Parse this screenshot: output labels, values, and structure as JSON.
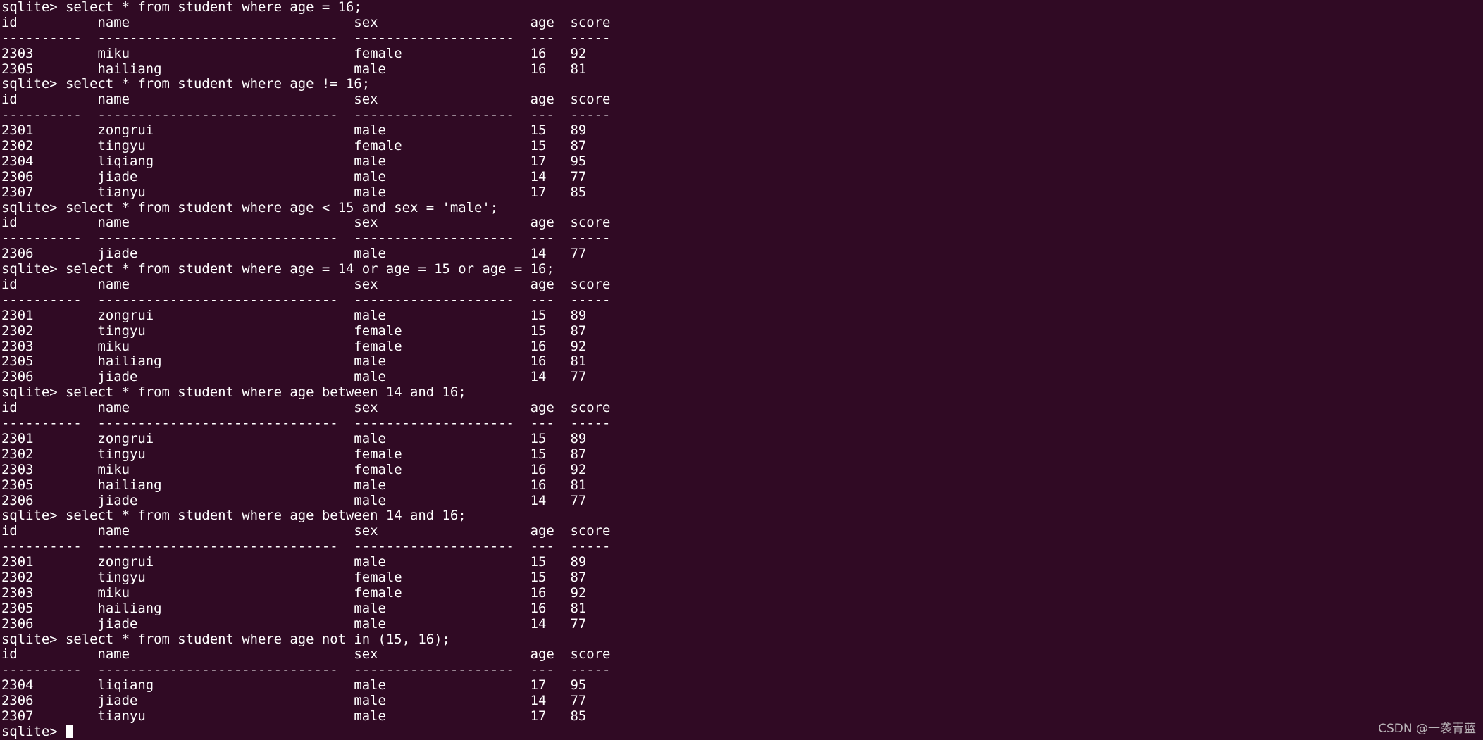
{
  "terminal": {
    "prompt": "sqlite> ",
    "columns": [
      "id",
      "name",
      "sex",
      "age",
      "score"
    ],
    "column_widths": [
      10,
      30,
      20,
      3,
      5
    ],
    "queries": [
      {
        "command": "select * from student where age = 16;",
        "rows": [
          [
            "2303",
            "miku",
            "female",
            "16",
            "92"
          ],
          [
            "2305",
            "hailiang",
            "male",
            "16",
            "81"
          ]
        ]
      },
      {
        "command": "select * from student where age != 16;",
        "rows": [
          [
            "2301",
            "zongrui",
            "male",
            "15",
            "89"
          ],
          [
            "2302",
            "tingyu",
            "female",
            "15",
            "87"
          ],
          [
            "2304",
            "liqiang",
            "male",
            "17",
            "95"
          ],
          [
            "2306",
            "jiade",
            "male",
            "14",
            "77"
          ],
          [
            "2307",
            "tianyu",
            "male",
            "17",
            "85"
          ]
        ]
      },
      {
        "command": "select * from student where age < 15 and sex = 'male';",
        "rows": [
          [
            "2306",
            "jiade",
            "male",
            "14",
            "77"
          ]
        ]
      },
      {
        "command": "select * from student where age = 14 or age = 15 or age = 16;",
        "rows": [
          [
            "2301",
            "zongrui",
            "male",
            "15",
            "89"
          ],
          [
            "2302",
            "tingyu",
            "female",
            "15",
            "87"
          ],
          [
            "2303",
            "miku",
            "female",
            "16",
            "92"
          ],
          [
            "2305",
            "hailiang",
            "male",
            "16",
            "81"
          ],
          [
            "2306",
            "jiade",
            "male",
            "14",
            "77"
          ]
        ]
      },
      {
        "command": "select * from student where age between 14 and 16;",
        "rows": [
          [
            "2301",
            "zongrui",
            "male",
            "15",
            "89"
          ],
          [
            "2302",
            "tingyu",
            "female",
            "15",
            "87"
          ],
          [
            "2303",
            "miku",
            "female",
            "16",
            "92"
          ],
          [
            "2305",
            "hailiang",
            "male",
            "16",
            "81"
          ],
          [
            "2306",
            "jiade",
            "male",
            "14",
            "77"
          ]
        ]
      },
      {
        "command": "select * from student where age between 14 and 16;",
        "rows": [
          [
            "2301",
            "zongrui",
            "male",
            "15",
            "89"
          ],
          [
            "2302",
            "tingyu",
            "female",
            "15",
            "87"
          ],
          [
            "2303",
            "miku",
            "female",
            "16",
            "92"
          ],
          [
            "2305",
            "hailiang",
            "male",
            "16",
            "81"
          ],
          [
            "2306",
            "jiade",
            "male",
            "14",
            "77"
          ]
        ]
      },
      {
        "command": "select * from student where age not in (15, 16);",
        "rows": [
          [
            "2304",
            "liqiang",
            "male",
            "17",
            "95"
          ],
          [
            "2306",
            "jiade",
            "male",
            "14",
            "77"
          ],
          [
            "2307",
            "tianyu",
            "male",
            "17",
            "85"
          ]
        ]
      }
    ]
  },
  "watermark": "CSDN @一袭青蓝",
  "colors": {
    "background": "#300a24",
    "text": "#ffffff"
  }
}
